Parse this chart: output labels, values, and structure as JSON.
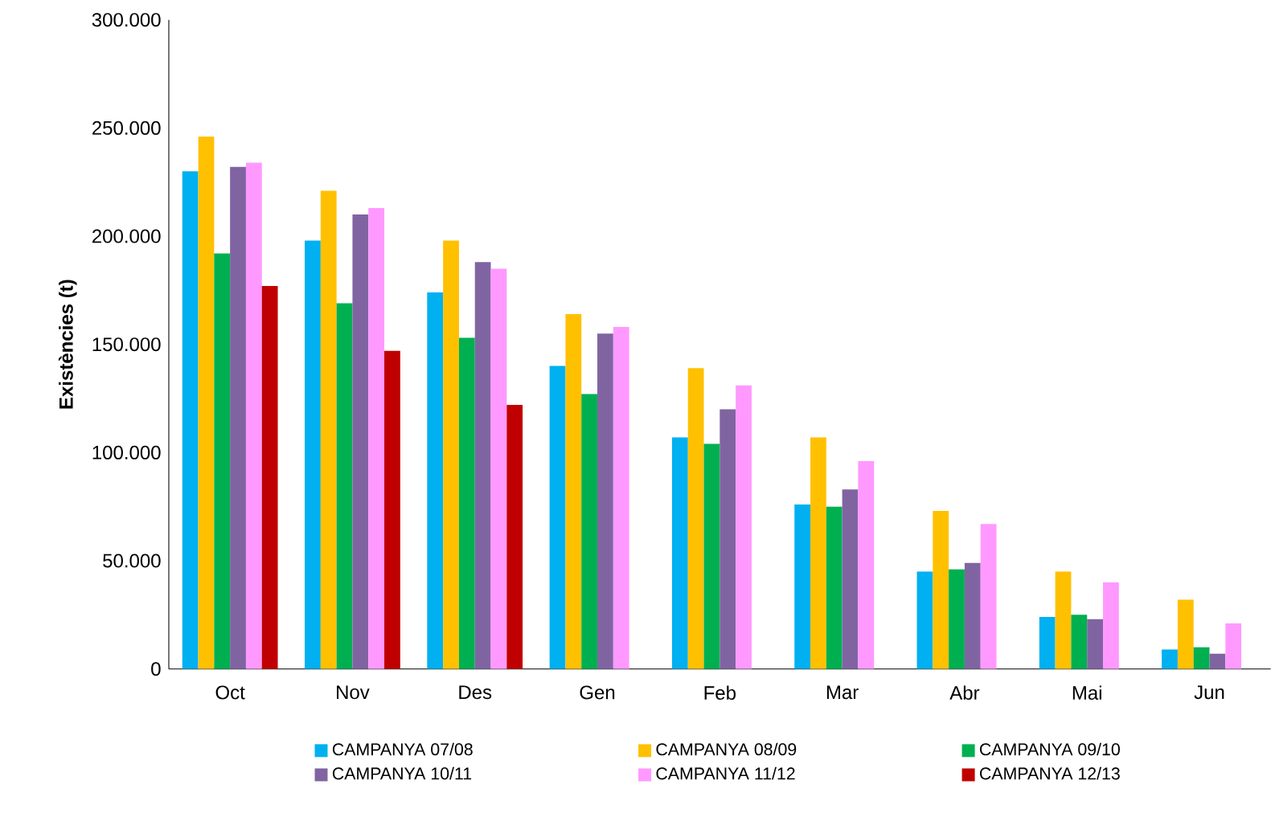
{
  "chart_data": {
    "type": "bar",
    "ylabel": "Existències (t)",
    "categories": [
      "Oct",
      "Nov",
      "Des",
      "Gen",
      "Feb",
      "Mar",
      "Abr",
      "Mai",
      "Jun"
    ],
    "series": [
      {
        "name": "CAMPANYA 07/08",
        "color": "#00b0f0",
        "values": [
          230000,
          198000,
          174000,
          140000,
          107000,
          76000,
          45000,
          24000,
          9000
        ]
      },
      {
        "name": "CAMPANYA 08/09",
        "color": "#ffc000",
        "values": [
          246000,
          221000,
          198000,
          164000,
          139000,
          107000,
          73000,
          45000,
          32000
        ]
      },
      {
        "name": "CAMPANYA 09/10",
        "color": "#00b050",
        "values": [
          192000,
          169000,
          153000,
          127000,
          104000,
          75000,
          46000,
          25000,
          10000
        ]
      },
      {
        "name": "CAMPANYA 10/11",
        "color": "#8064a2",
        "values": [
          232000,
          210000,
          188000,
          155000,
          120000,
          83000,
          49000,
          23000,
          7000
        ]
      },
      {
        "name": "CAMPANYA 11/12",
        "color": "#ff99ff",
        "values": [
          234000,
          213000,
          185000,
          158000,
          131000,
          96000,
          67000,
          40000,
          21000
        ]
      },
      {
        "name": "CAMPANYA 12/13",
        "color": "#c00000",
        "values": [
          177000,
          147000,
          122000,
          null,
          null,
          null,
          null,
          null,
          null
        ]
      }
    ],
    "ylim": [
      0,
      300000
    ],
    "yticks": [
      {
        "value": 0,
        "label": "0"
      },
      {
        "value": 50000,
        "label": "50.000"
      },
      {
        "value": 100000,
        "label": "100.000"
      },
      {
        "value": 150000,
        "label": "150.000"
      },
      {
        "value": 200000,
        "label": "200.000"
      },
      {
        "value": 250000,
        "label": "250.000"
      },
      {
        "value": 300000,
        "label": "300.000"
      }
    ],
    "grid": false,
    "legend": "bottom"
  }
}
